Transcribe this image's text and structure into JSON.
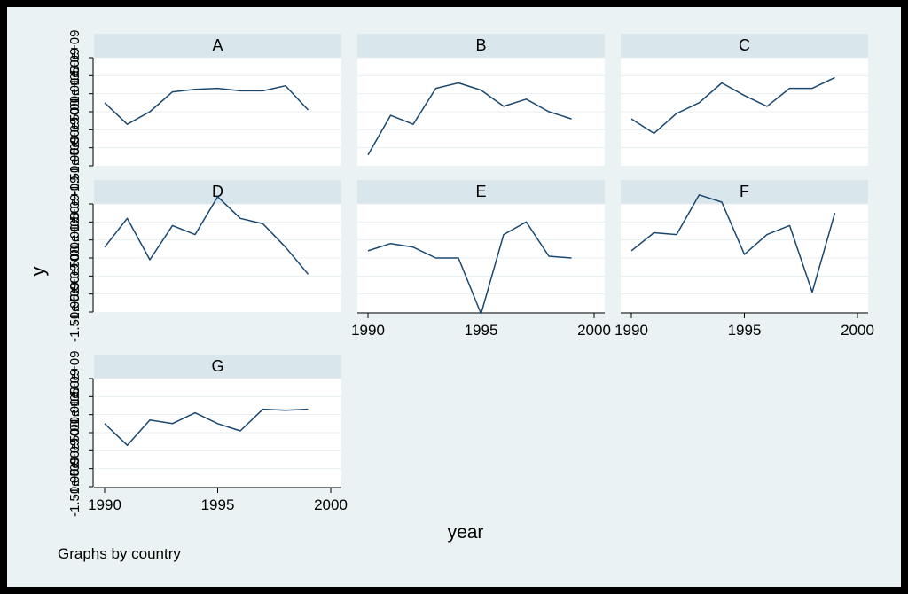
{
  "colors": {
    "outer_border": "#000000",
    "background": "#eaf2f3",
    "panel_header": "#d9e6eb",
    "plot_area": "#ffffff",
    "gridline": "#e8eef0",
    "line": "#1a476f",
    "text": "#000000"
  },
  "chart": {
    "ylabel": "y",
    "xlabel": "year",
    "note": "Graphs by country",
    "y_tick_overlap_labels": [
      "-1.50e+09",
      "-1.00e+09",
      "-5.00e+08",
      "0",
      "5.00e+08",
      "1.00e+09",
      "1.50e+09"
    ]
  },
  "chart_data": {
    "type": "line",
    "layout": "small multiples (3 columns), shared axes",
    "x_ticks": [
      1990,
      1995,
      2000
    ],
    "xlim": [
      1990,
      2000
    ],
    "ylim": [
      -1.5,
      1.5
    ],
    "y_scale_note": "tick labels overlap and are illegible; values approximate in arbitrary units",
    "grid": true,
    "x": [
      1990,
      1991,
      1992,
      1993,
      1994,
      1995,
      1996,
      1997,
      1998,
      1999
    ],
    "series": [
      {
        "panel": "A",
        "values": [
          0.25,
          -0.35,
          0.0,
          0.55,
          0.62,
          0.65,
          0.58,
          0.58,
          0.72,
          0.05
        ]
      },
      {
        "panel": "B",
        "values": [
          -1.2,
          -0.1,
          -0.35,
          0.65,
          0.8,
          0.6,
          0.15,
          0.35,
          0.0,
          -0.2
        ]
      },
      {
        "panel": "C",
        "values": [
          -0.2,
          -0.6,
          -0.05,
          0.25,
          0.8,
          0.45,
          0.15,
          0.65,
          0.65,
          0.95
        ]
      },
      {
        "panel": "D",
        "values": [
          0.3,
          1.1,
          -0.05,
          0.9,
          0.65,
          1.7,
          1.1,
          0.95,
          0.3,
          -0.45
        ]
      },
      {
        "panel": "E",
        "values": [
          0.2,
          0.4,
          0.3,
          0.0,
          0.0,
          -1.55,
          0.65,
          1.0,
          0.05,
          0.0
        ]
      },
      {
        "panel": "F",
        "values": [
          0.2,
          0.7,
          0.65,
          1.75,
          1.55,
          0.1,
          0.65,
          0.9,
          -0.95,
          1.25
        ]
      },
      {
        "panel": "G",
        "values": [
          0.25,
          -0.35,
          0.35,
          0.25,
          0.55,
          0.25,
          0.05,
          0.65,
          0.62,
          0.65
        ]
      }
    ]
  }
}
